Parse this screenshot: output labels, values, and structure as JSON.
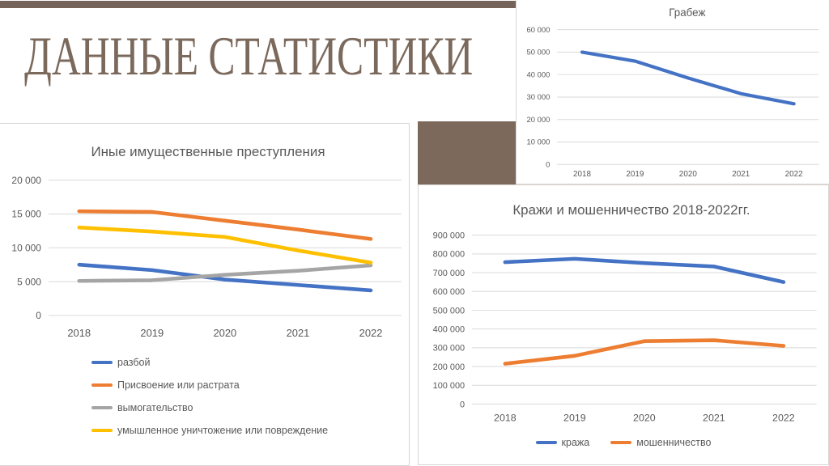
{
  "slide": {
    "title": "ДАННЫЕ СТАТИСТИКИ",
    "title_color": "#7b695c",
    "accent_bar_color": "#75635a",
    "accent_block_color": "#7c695c"
  },
  "theme": {
    "text_color": "#595959",
    "grid_color": "#d9d9d9",
    "series_blue": "#4472c4",
    "series_orange": "#ed7d31",
    "series_gray": "#a5a5a5",
    "series_yellow": "#ffc000"
  },
  "chart_data": [
    {
      "type": "line",
      "title": "Грабеж",
      "x": [
        "2018",
        "2019",
        "2020",
        "2021",
        "2022"
      ],
      "series": [
        {
          "name": "Грабеж",
          "color": "#4472c4",
          "values": [
            50000,
            46000,
            38500,
            31500,
            27000
          ]
        }
      ],
      "ylim": [
        0,
        60000
      ],
      "ytick": 10000,
      "grid": true,
      "legend_position": "none"
    },
    {
      "type": "line",
      "title": "Иные имущественные преступления",
      "x": [
        "2018",
        "2019",
        "2020",
        "2021",
        "2022"
      ],
      "series": [
        {
          "name": "разбой",
          "color": "#4472c4",
          "values": [
            7500,
            6700,
            5300,
            4500,
            3700
          ]
        },
        {
          "name": "Присвоение или растрата",
          "color": "#ed7d31",
          "values": [
            15400,
            15300,
            14000,
            12700,
            11300
          ]
        },
        {
          "name": "вымогательство",
          "color": "#a5a5a5",
          "values": [
            5100,
            5200,
            6000,
            6600,
            7400
          ]
        },
        {
          "name": "умышленное уничтожение или повреждение",
          "color": "#ffc000",
          "values": [
            13000,
            12400,
            11600,
            9600,
            7800
          ]
        }
      ],
      "ylim": [
        0,
        20000
      ],
      "ytick": 5000,
      "grid": true,
      "legend_position": "left-column"
    },
    {
      "type": "line",
      "title": "Кражи и мошенничество 2018-2022гг.",
      "x": [
        "2018",
        "2019",
        "2020",
        "2021",
        "2022"
      ],
      "series": [
        {
          "name": "кража",
          "color": "#4472c4",
          "values": [
            756000,
            774000,
            751000,
            733000,
            650000
          ]
        },
        {
          "name": "мошенничество",
          "color": "#ed7d31",
          "values": [
            215000,
            257000,
            335000,
            340000,
            310000
          ]
        }
      ],
      "ylim": [
        0,
        900000
      ],
      "ytick": 100000,
      "grid": true,
      "legend_position": "bottom-row"
    }
  ]
}
